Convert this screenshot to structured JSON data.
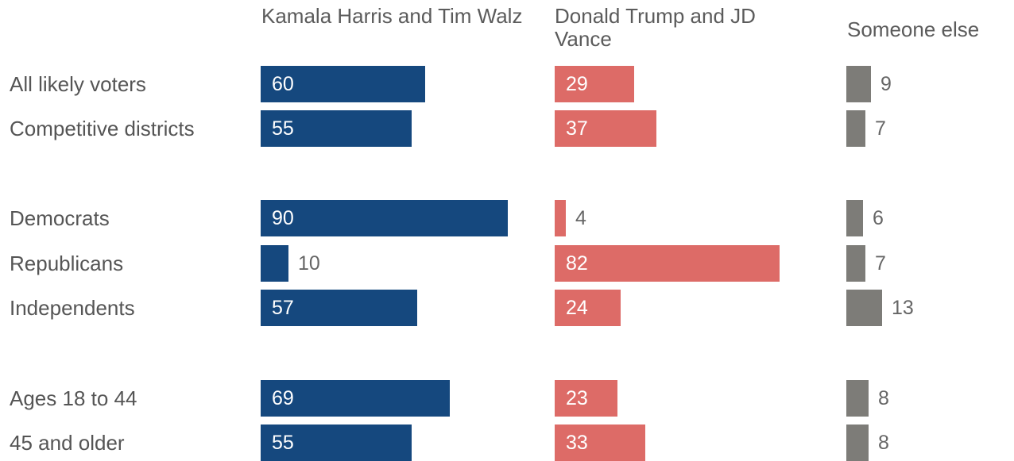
{
  "chart_data": {
    "type": "bar",
    "series": [
      {
        "name": "Kamala Harris and Tim Walz",
        "color": "#15487e",
        "values": [
          60,
          55,
          90,
          10,
          57,
          69,
          55
        ]
      },
      {
        "name": "Donald Trump and JD Vance",
        "color": "#dd6b67",
        "values": [
          29,
          37,
          4,
          82,
          24,
          23,
          33
        ]
      },
      {
        "name": "Someone else",
        "color": "#7d7c78",
        "values": [
          9,
          7,
          6,
          7,
          13,
          8,
          8
        ]
      }
    ],
    "categories": [
      "All likely voters",
      "Competitive districts",
      "Democrats",
      "Republicans",
      "Independents",
      "Ages 18 to 44",
      "45 and older"
    ],
    "groups": [
      [
        0,
        1
      ],
      [
        2,
        3,
        4
      ],
      [
        5,
        6
      ]
    ]
  }
}
